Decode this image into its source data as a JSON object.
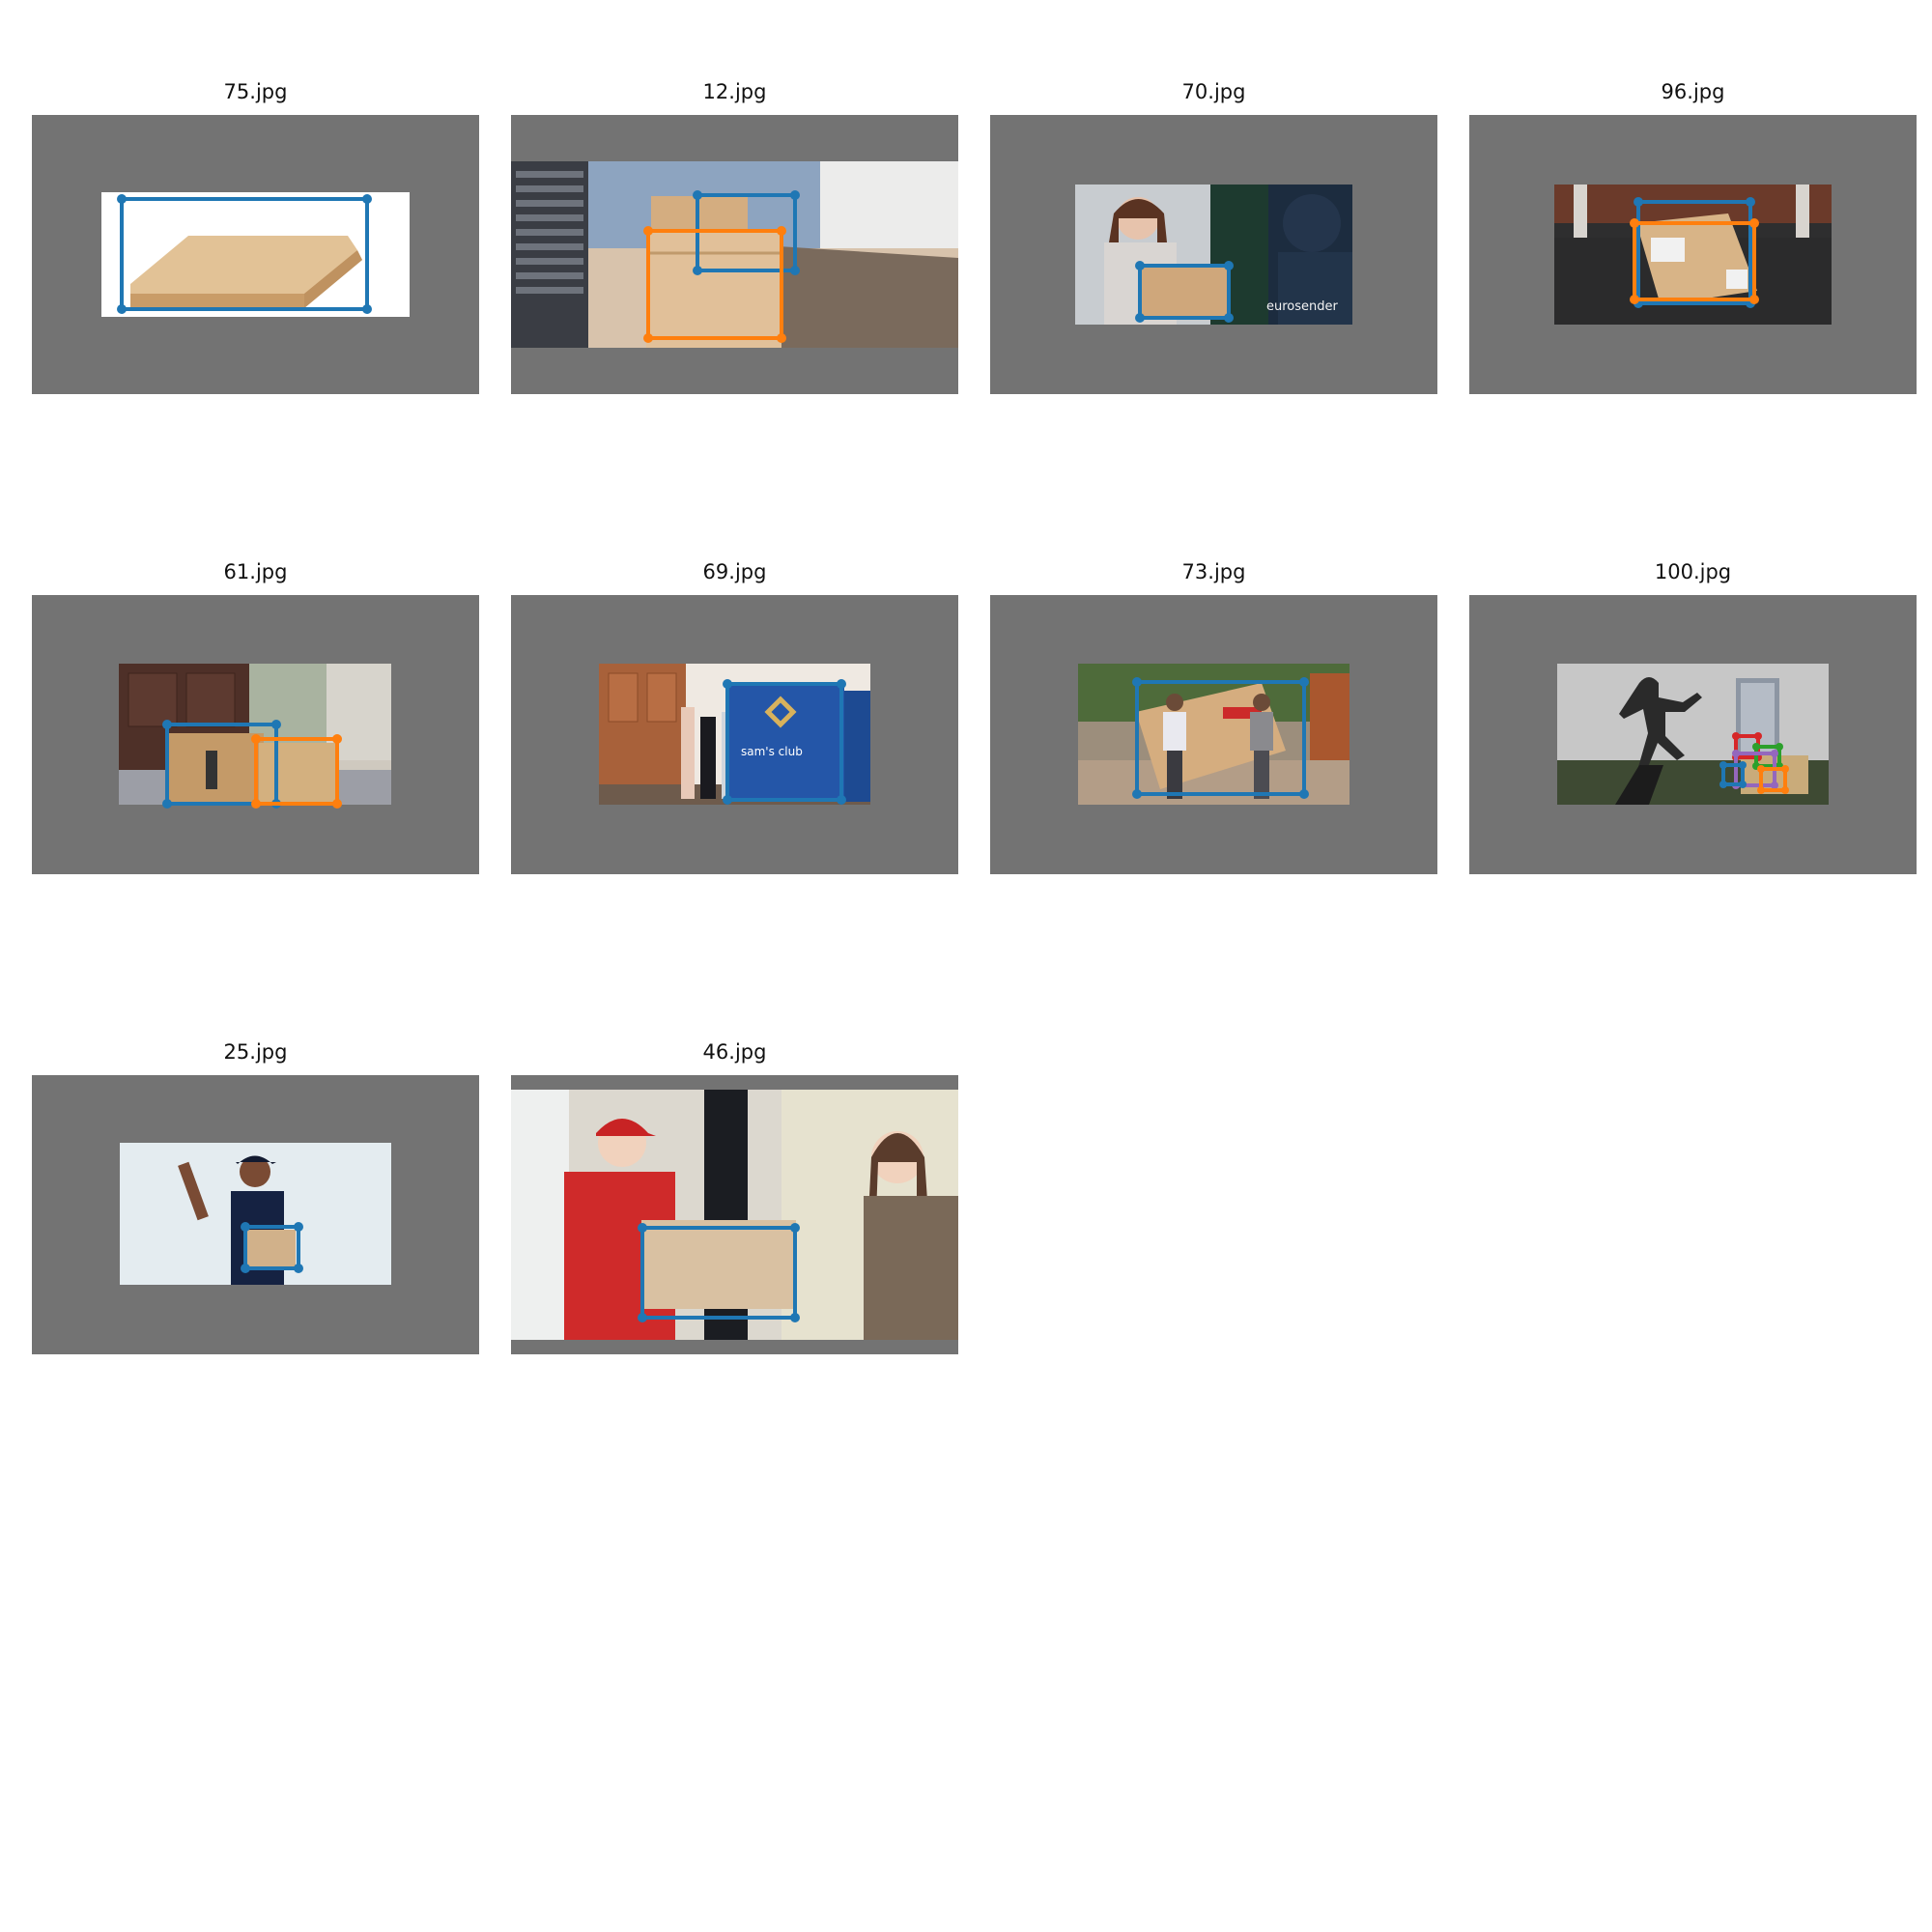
{
  "palette": {
    "frame": "#737373",
    "box_blue": "#1f77b4",
    "box_orange": "#ff7f0e",
    "box_green": "#2ca02c",
    "box_red": "#d62728",
    "box_purple": "#9467bd",
    "cardboard": "#d9b98a"
  },
  "grid": {
    "images": [
      {
        "title": "75.jpg",
        "scene": "pizza box on white background",
        "watermark": ""
      },
      {
        "title": "12.jpg",
        "scene": "two parcels on doorstep",
        "watermark": ""
      },
      {
        "title": "70.jpg",
        "scene": "woman receiving a parcel",
        "watermark": "eurosender"
      },
      {
        "title": "96.jpg",
        "scene": "labelled parcel on doormat",
        "watermark": ""
      },
      {
        "title": "61.jpg",
        "scene": "two parcels by front door",
        "watermark": ""
      },
      {
        "title": "69.jpg",
        "scene": "sam's club box and wine bottles",
        "watermark": "sam's club"
      },
      {
        "title": "73.jpg",
        "scene": "men carrying a large box",
        "watermark": ""
      },
      {
        "title": "100.jpg",
        "scene": "shadow thief near parcels",
        "watermark": ""
      },
      {
        "title": "25.jpg",
        "scene": "courier holding a small parcel",
        "watermark": ""
      },
      {
        "title": "46.jpg",
        "scene": "masked courier handing over a box",
        "watermark": ""
      }
    ]
  }
}
